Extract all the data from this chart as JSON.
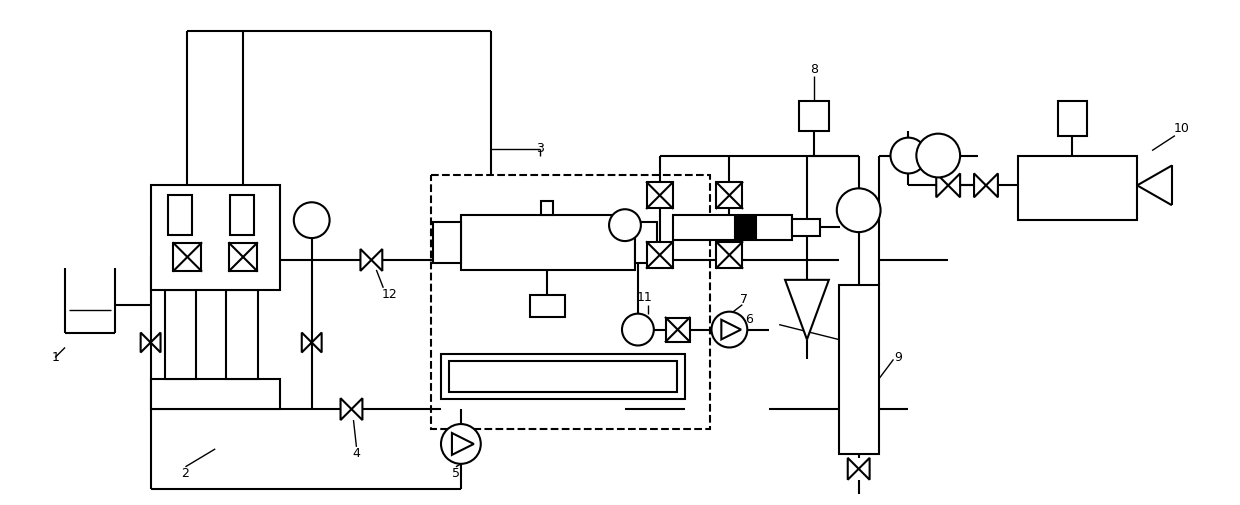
{
  "bg_color": "#ffffff",
  "lw": 1.5,
  "fig_width": 12.4,
  "fig_height": 5.05,
  "dpi": 100
}
